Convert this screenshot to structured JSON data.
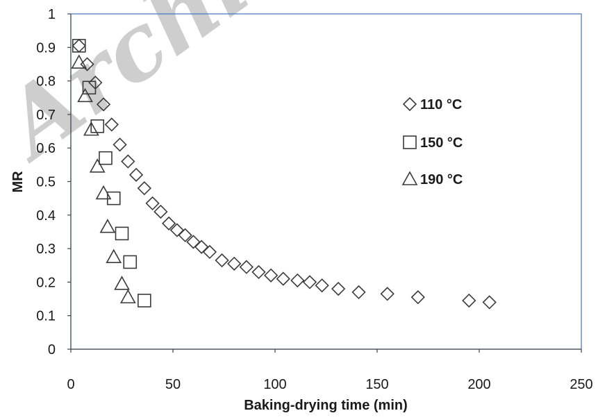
{
  "watermark": "Archive",
  "chart_data": {
    "type": "scatter",
    "title": "",
    "xlabel": "Baking-drying time (min)",
    "ylabel": "MR",
    "xlim": [
      0,
      250
    ],
    "ylim": [
      0,
      1
    ],
    "xticks": [
      0,
      50,
      100,
      150,
      200,
      250
    ],
    "yticks": [
      0,
      0.1,
      0.2,
      0.3,
      0.4,
      0.5,
      0.6,
      0.7,
      0.8,
      0.9,
      1
    ],
    "grid": false,
    "legend_position": "right-center",
    "series": [
      {
        "name": "110 °C",
        "marker": "diamond",
        "x": [
          4,
          8,
          12,
          16,
          20,
          24,
          28,
          32,
          36,
          40,
          44,
          48,
          52,
          56,
          60,
          64,
          68,
          74,
          80,
          86,
          92,
          98,
          104,
          111,
          117,
          123,
          131,
          141,
          155,
          170,
          195,
          205
        ],
        "y": [
          0.905,
          0.85,
          0.795,
          0.73,
          0.67,
          0.61,
          0.56,
          0.52,
          0.48,
          0.435,
          0.41,
          0.375,
          0.355,
          0.34,
          0.32,
          0.305,
          0.29,
          0.265,
          0.255,
          0.245,
          0.23,
          0.22,
          0.21,
          0.205,
          0.2,
          0.19,
          0.18,
          0.17,
          0.165,
          0.155,
          0.145,
          0.14
        ]
      },
      {
        "name": "150 °C",
        "marker": "square",
        "x": [
          4,
          9,
          13,
          17,
          21,
          25,
          29,
          36
        ],
        "y": [
          0.905,
          0.78,
          0.665,
          0.57,
          0.45,
          0.345,
          0.26,
          0.145
        ]
      },
      {
        "name": "190 °C",
        "marker": "triangle",
        "x": [
          4,
          7,
          10,
          13,
          16,
          18,
          21,
          25,
          28
        ],
        "y": [
          0.855,
          0.755,
          0.655,
          0.545,
          0.465,
          0.365,
          0.275,
          0.195,
          0.155
        ]
      }
    ]
  }
}
